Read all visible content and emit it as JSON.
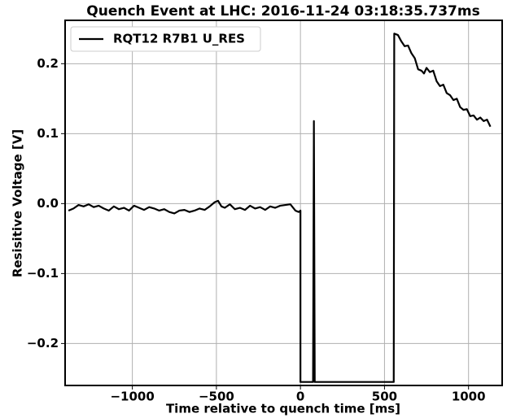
{
  "chart_data": {
    "type": "line",
    "title": "Quench Event at LHC: 2016-11-24 03:18:35.737ms",
    "xlabel": "Time relative to quench time [ms]",
    "ylabel": "Resisitive Voltage [V]",
    "xlim": [
      -1400,
      1200
    ],
    "ylim": [
      -0.26,
      0.262
    ],
    "xticks": [
      {
        "value": -1000,
        "label": "−1000"
      },
      {
        "value": -500,
        "label": "−500"
      },
      0,
      500,
      1000
    ],
    "yticks": [
      {
        "value": -0.2,
        "label": "−0.2"
      },
      {
        "value": -0.1,
        "label": "−0.1"
      },
      {
        "value": 0,
        "label": "0.0"
      },
      0.1,
      0.2
    ],
    "grid": true,
    "legend": "upper left",
    "series": [
      {
        "name": "RQT12 R7B1 U_RES",
        "color": "#000000",
        "x": [
          -1380,
          -1350,
          -1320,
          -1290,
          -1260,
          -1230,
          -1200,
          -1170,
          -1140,
          -1110,
          -1080,
          -1050,
          -1020,
          -990,
          -960,
          -930,
          -900,
          -870,
          -840,
          -810,
          -780,
          -750,
          -720,
          -690,
          -660,
          -630,
          -600,
          -570,
          -540,
          -510,
          -490,
          -470,
          -450,
          -420,
          -390,
          -360,
          -330,
          -300,
          -270,
          -240,
          -210,
          -180,
          -150,
          -120,
          -90,
          -60,
          -30,
          -10,
          0,
          0,
          75,
          80,
          85,
          555,
          558,
          580,
          600,
          620,
          640,
          660,
          680,
          700,
          720,
          735,
          750,
          770,
          790,
          810,
          830,
          850,
          870,
          890,
          910,
          930,
          950,
          970,
          990,
          1010,
          1030,
          1050,
          1070,
          1090,
          1110,
          1130
        ],
        "values": [
          -0.01,
          -0.007,
          -0.002,
          -0.004,
          -0.001,
          -0.005,
          -0.003,
          -0.007,
          -0.01,
          -0.004,
          -0.008,
          -0.006,
          -0.01,
          -0.003,
          -0.006,
          -0.009,
          -0.005,
          -0.007,
          -0.01,
          -0.008,
          -0.012,
          -0.014,
          -0.01,
          -0.009,
          -0.012,
          -0.01,
          -0.007,
          -0.009,
          -0.004,
          0.002,
          0.004,
          -0.004,
          -0.006,
          -0.001,
          -0.008,
          -0.006,
          -0.009,
          -0.003,
          -0.007,
          -0.005,
          -0.009,
          -0.004,
          -0.006,
          -0.003,
          -0.002,
          -0.001,
          -0.01,
          -0.012,
          -0.01,
          -0.255,
          -0.255,
          0.118,
          -0.255,
          -0.255,
          0.243,
          0.241,
          0.232,
          0.225,
          0.226,
          0.215,
          0.208,
          0.192,
          0.19,
          0.186,
          0.194,
          0.188,
          0.19,
          0.175,
          0.168,
          0.17,
          0.158,
          0.155,
          0.148,
          0.15,
          0.138,
          0.134,
          0.135,
          0.125,
          0.126,
          0.12,
          0.123,
          0.118,
          0.12,
          0.11
        ]
      }
    ]
  }
}
